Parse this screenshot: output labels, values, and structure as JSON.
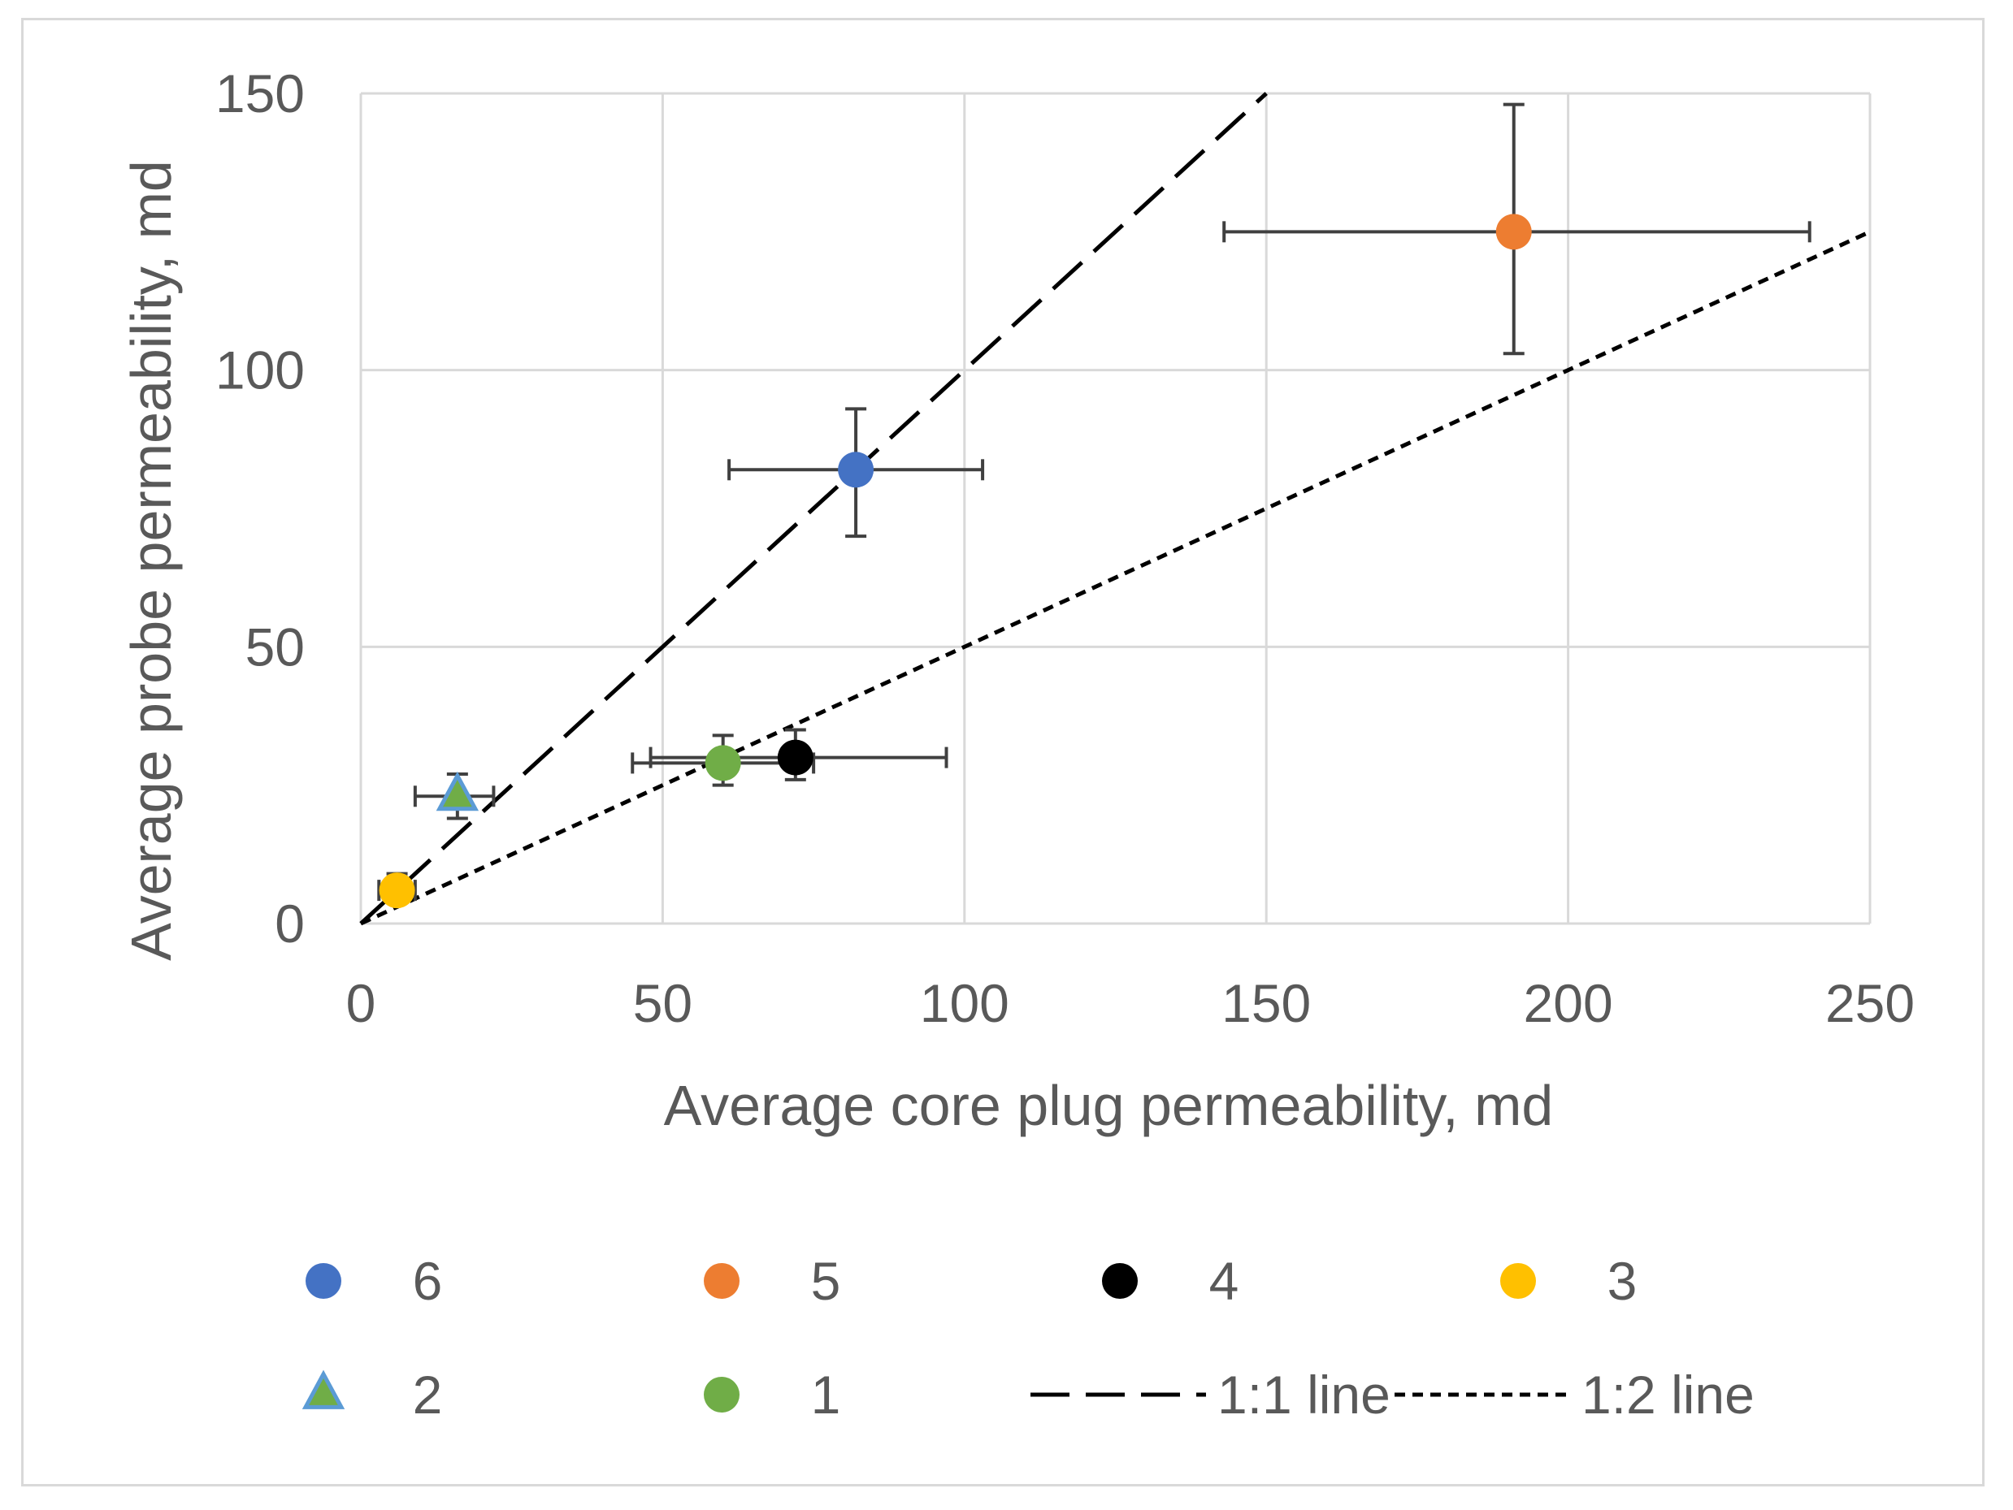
{
  "chart_data": {
    "type": "scatter",
    "title": "",
    "xlabel": "Average core plug permeability, md",
    "ylabel": "Average probe permeability, md",
    "xlim": [
      0,
      250
    ],
    "ylim": [
      0,
      150
    ],
    "xticks": [
      0,
      50,
      100,
      150,
      200,
      250
    ],
    "yticks": [
      0,
      50,
      100,
      150
    ],
    "x_tick_labels": [
      "0",
      "50",
      "100",
      "150",
      "200",
      "250"
    ],
    "y_tick_labels": [
      "0",
      "50",
      "100",
      "150"
    ],
    "grid": true,
    "legend_position": "bottom",
    "series": [
      {
        "name": "6",
        "marker": "circle",
        "color": "#4472C4",
        "x": 82,
        "y": 82,
        "x_err": [
          61,
          103
        ],
        "y_err": [
          70,
          93
        ]
      },
      {
        "name": "5",
        "marker": "circle",
        "color": "#ED7D31",
        "x": 191,
        "y": 125,
        "x_err": [
          143,
          240
        ],
        "y_err": [
          103,
          148
        ]
      },
      {
        "name": "4",
        "marker": "circle",
        "color": "#000000",
        "x": 72,
        "y": 30,
        "x_err": [
          48,
          97
        ],
        "y_err": [
          26,
          35
        ]
      },
      {
        "name": "3",
        "marker": "circle",
        "color": "#FFC000",
        "x": 6,
        "y": 6,
        "x_err": [
          3,
          9
        ],
        "y_err": [
          4,
          9
        ]
      },
      {
        "name": "2",
        "marker": "triangle",
        "color": "#70AD47",
        "edge_color": "#5B9BD5",
        "x": 16,
        "y": 23,
        "x_err": [
          9,
          22
        ],
        "y_err": [
          19,
          27
        ]
      },
      {
        "name": "1",
        "marker": "circle",
        "color": "#70AD47",
        "x": 60,
        "y": 29,
        "x_err": [
          45,
          75
        ],
        "y_err": [
          25,
          34
        ]
      }
    ],
    "reference_lines": [
      {
        "name": "1:1 line",
        "style": "dashed",
        "color": "#000000",
        "slope": 1
      },
      {
        "name": "1:2 line",
        "style": "dotted",
        "color": "#000000",
        "slope": 0.5
      }
    ]
  }
}
